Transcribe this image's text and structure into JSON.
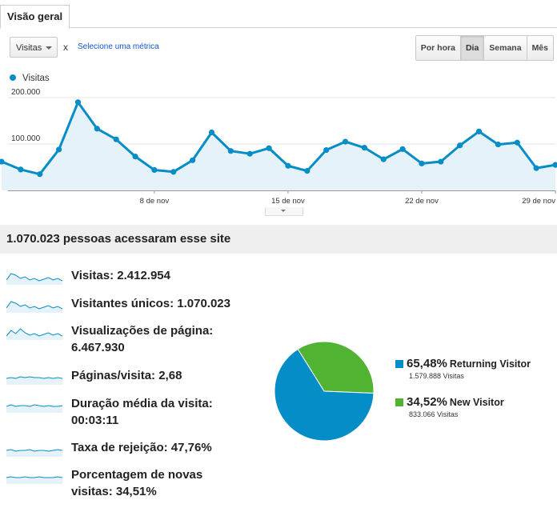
{
  "tabs": [
    {
      "label": "Visão geral",
      "active": true
    }
  ],
  "controls": {
    "metric_select_value": "Visitas",
    "remove_label": "x",
    "select_metric_link": "Selecione uma métrica",
    "period_buttons": [
      {
        "label": "Por hora",
        "active": false
      },
      {
        "label": "Dia",
        "active": true
      },
      {
        "label": "Semana",
        "active": false
      },
      {
        "label": "Mês",
        "active": false
      }
    ]
  },
  "chart_data": {
    "type": "area",
    "series": [
      {
        "name": "Visitas",
        "color": "#058dc7",
        "values": [
          62000,
          45000,
          35000,
          88000,
          190000,
          133000,
          110000,
          73000,
          44000,
          40000,
          65000,
          125000,
          85000,
          79000,
          91000,
          53000,
          42000,
          87000,
          105000,
          92000,
          67000,
          89000,
          58000,
          62000,
          97000,
          127000,
          99000,
          103000,
          48000,
          55000
        ]
      }
    ],
    "x_tick_labels": [
      "8 de nov",
      "15 de nov",
      "22 de nov",
      "29 de nov"
    ],
    "x_tick_index": [
      8,
      15,
      22,
      29
    ],
    "y_tick_labels": [
      "100.000",
      "200.000"
    ],
    "y_tick_values": [
      100000,
      200000
    ],
    "ylim": [
      0,
      200000
    ],
    "grid": true
  },
  "summary": {
    "headline": "1.070.023 pessoas acessaram esse site"
  },
  "metrics": [
    {
      "label": "Visitas: 2.412.954"
    },
    {
      "label": "Visitantes únicos: 1.070.023"
    },
    {
      "label": "Visualizações de página:",
      "label2": "6.467.930"
    },
    {
      "label": "Páginas/visita: 2,68"
    },
    {
      "label": "Duração média da visita:",
      "label2": "00:03:11"
    },
    {
      "label": "Taxa de rejeição: 47,76%"
    },
    {
      "label": "Porcentagem de novas",
      "label2": "visitas: 34,51%"
    }
  ],
  "pie": {
    "slices": [
      {
        "percent_text": "65,48%",
        "label": "Returning Visitor",
        "visits": "1.579.888 Visitas",
        "value": 65.48,
        "color": "#058dc7"
      },
      {
        "percent_text": "34,52%",
        "label": "New Visitor",
        "visits": "833.066 Visitas",
        "value": 34.52,
        "color": "#50b432"
      }
    ]
  }
}
